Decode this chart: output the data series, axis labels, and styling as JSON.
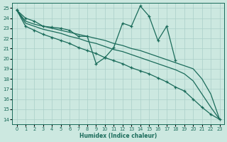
{
  "xlabel": "Humidex (Indice chaleur)",
  "xlim": [
    -0.5,
    23.5
  ],
  "ylim": [
    13.5,
    25.5
  ],
  "yticks": [
    14,
    15,
    16,
    17,
    18,
    19,
    20,
    21,
    22,
    23,
    24,
    25
  ],
  "xticks": [
    0,
    1,
    2,
    3,
    4,
    5,
    6,
    7,
    8,
    9,
    10,
    11,
    12,
    13,
    14,
    15,
    16,
    17,
    18,
    19,
    20,
    21,
    22,
    23
  ],
  "background_color": "#cce8e0",
  "grid_color": "#aacfc8",
  "line_color": "#1a6b5a",
  "series_zigzag": [
    24.8,
    24.0,
    23.7,
    23.2,
    23.1,
    23.0,
    22.8,
    22.2,
    22.2,
    19.5,
    20.1,
    21.1,
    23.5,
    23.2,
    25.2,
    24.2,
    21.8,
    23.2,
    19.8,
    null,
    null,
    null,
    null,
    null
  ],
  "series_straight1": [
    24.8,
    23.7,
    23.4,
    23.2,
    23.0,
    22.8,
    22.6,
    22.4,
    22.2,
    22.0,
    21.8,
    21.5,
    21.3,
    21.0,
    20.8,
    20.5,
    20.2,
    19.9,
    19.6,
    19.3,
    19.0,
    18.0,
    16.5,
    14.0
  ],
  "series_straight2": [
    24.8,
    23.5,
    23.2,
    22.9,
    22.7,
    22.5,
    22.2,
    22.0,
    21.7,
    21.5,
    21.2,
    20.9,
    20.7,
    20.4,
    20.1,
    19.8,
    19.5,
    19.2,
    18.9,
    18.5,
    17.8,
    16.5,
    15.2,
    14.0
  ],
  "series_steep": [
    24.8,
    23.2,
    22.8,
    22.4,
    22.1,
    21.8,
    21.5,
    21.1,
    20.8,
    20.5,
    20.1,
    19.8,
    19.5,
    19.1,
    18.8,
    18.5,
    18.1,
    17.7,
    17.2,
    16.8,
    16.0,
    15.2,
    14.5,
    14.0
  ]
}
